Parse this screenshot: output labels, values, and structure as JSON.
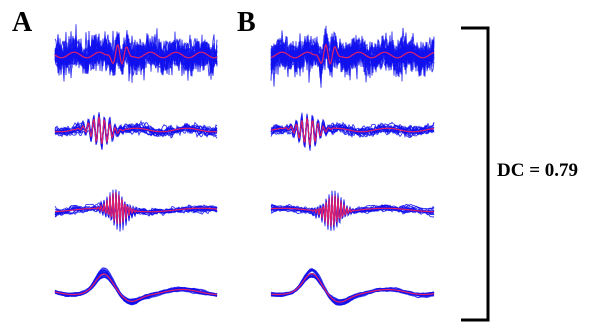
{
  "panels": {
    "a": {
      "label": "A"
    },
    "b": {
      "label": "B"
    }
  },
  "dice_coefficient": {
    "text": "DC = 0.79"
  },
  "colors": {
    "trace_overlay": "#1010ee",
    "trace_mean": "#e0206a",
    "bracket": "#000000",
    "background": "#ffffff"
  },
  "icons": {
    "bracket": "right-square-bracket"
  },
  "rows": [
    {
      "band": "highest-frequency"
    },
    {
      "band": "high-frequency"
    },
    {
      "band": "mid-frequency"
    },
    {
      "band": "low-frequency"
    }
  ]
}
